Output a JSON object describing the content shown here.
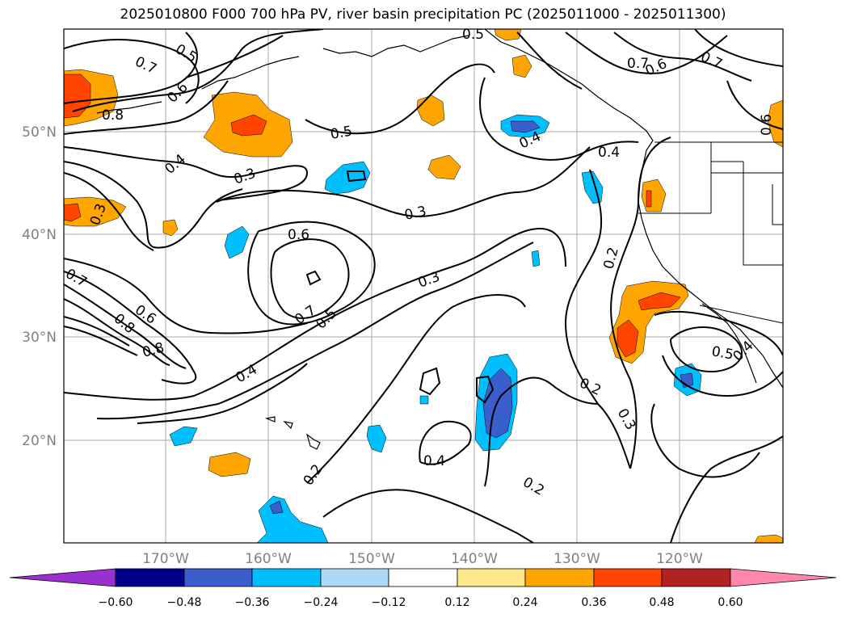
{
  "title": "2025010800 F000 700 hPa PV, river basin precipitation PC (2025011000 - 2025011300)",
  "map": {
    "lon_labels": [
      "170°W",
      "160°W",
      "150°W",
      "140°W",
      "130°W",
      "120°W"
    ],
    "lat_labels": [
      "50°N",
      "40°N",
      "30°N",
      "20°N"
    ]
  },
  "contour_labels": [
    "0.5",
    "0.7",
    "0.6",
    "0.8",
    "0.4",
    "0.3",
    "0.5",
    "0.4",
    "0.3",
    "0.6",
    "0.7",
    "0.5",
    "0.3",
    "0.4",
    "0.2",
    "0.2",
    "0.3",
    "0.4",
    "0.2",
    "0.2",
    "0.7",
    "0.6",
    "0.7",
    "0.4",
    "0.5",
    "0.4",
    "0.7",
    "0.6",
    "0.8",
    "0.8",
    "0.3",
    "0.5",
    "0.6"
  ],
  "colorbar": {
    "ticks": [
      "−0.60",
      "−0.48",
      "−0.36",
      "−0.24",
      "−0.12",
      "0.12",
      "0.24",
      "0.36",
      "0.48",
      "0.60"
    ],
    "colors": {
      "lt_under": "#9b30d0",
      "neg_060": "#00008b",
      "neg_048": "#3a5fcd",
      "neg_036": "#00bfff",
      "neg_024": "#add8f6",
      "neutral": "#ffffff",
      "pos_012": "#ffe88a",
      "pos_024": "#ffa500",
      "pos_036": "#ff4500",
      "pos_048": "#b22222",
      "gt_over": "#ff88aa"
    }
  }
}
